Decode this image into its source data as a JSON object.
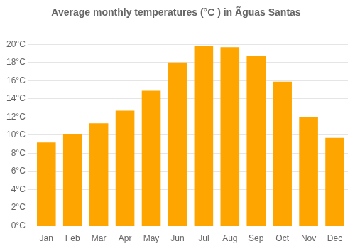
{
  "chart_data": {
    "type": "bar",
    "title": "Average monthly temperatures (°C ) in Ãguas Santas",
    "categories": [
      "Jan",
      "Feb",
      "Mar",
      "Apr",
      "May",
      "Jun",
      "Jul",
      "Aug",
      "Sep",
      "Oct",
      "Nov",
      "Dec"
    ],
    "values": [
      9.2,
      10.1,
      11.3,
      12.7,
      14.9,
      18.0,
      19.8,
      19.7,
      18.7,
      15.9,
      12.0,
      9.7
    ],
    "color": "#FFA500",
    "ylim": [
      0,
      22
    ],
    "yticks": [
      {
        "value": 0,
        "label": "0°C"
      },
      {
        "value": 2,
        "label": "2°C"
      },
      {
        "value": 4,
        "label": "4°C"
      },
      {
        "value": 6,
        "label": "6°C"
      },
      {
        "value": 8,
        "label": "8°C"
      },
      {
        "value": 10,
        "label": "10°C"
      },
      {
        "value": 12,
        "label": "12°C"
      },
      {
        "value": 14,
        "label": "14°C"
      },
      {
        "value": 16,
        "label": "16°C"
      },
      {
        "value": 18,
        "label": "18°C"
      },
      {
        "value": 20,
        "label": "20°C"
      }
    ],
    "grid": true
  }
}
